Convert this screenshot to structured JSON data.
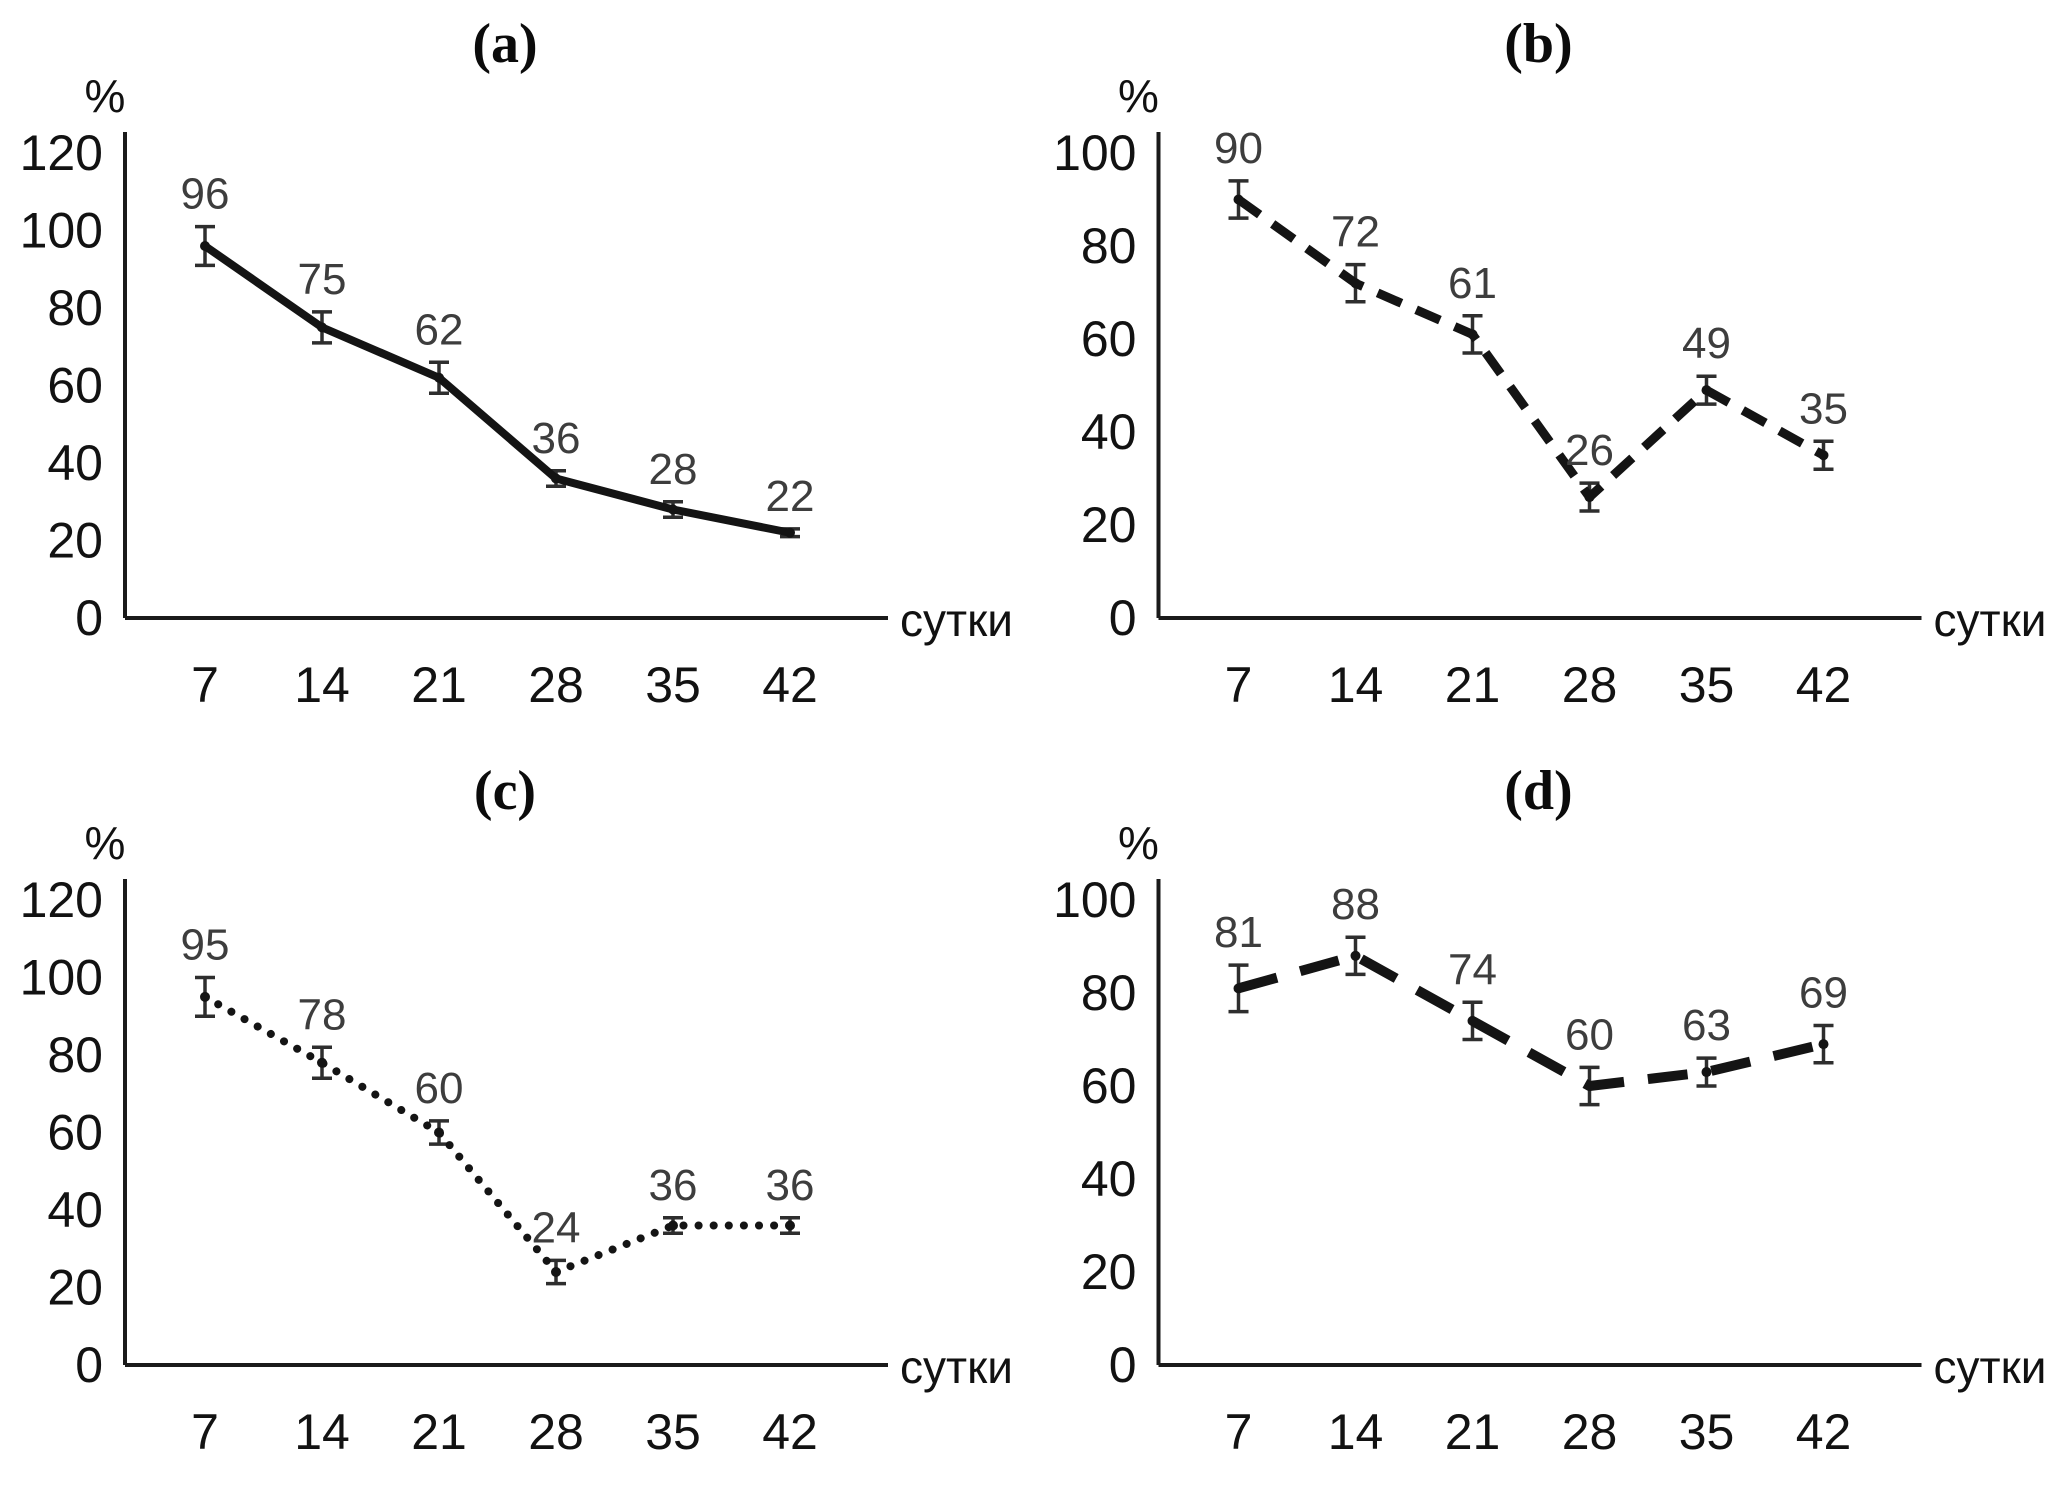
{
  "figure": {
    "background": "#ffffff",
    "ink_color": "#141414",
    "data_label_color": "#3d3d3d",
    "x_axis_unit": "сутки",
    "y_axis_unit": "%"
  },
  "chart_data": [
    {
      "type": "line",
      "title": "(a)",
      "line_style": "solid",
      "xlabel": "сутки",
      "ylabel": "%",
      "x": [
        7,
        14,
        21,
        28,
        35,
        42
      ],
      "values": [
        96,
        75,
        62,
        36,
        28,
        22
      ],
      "errors": [
        5,
        4,
        4,
        2,
        2,
        1
      ],
      "ylim": [
        0,
        120
      ],
      "yticks": [
        0,
        20,
        40,
        60,
        80,
        100,
        120
      ],
      "grid": false,
      "legend": "none",
      "error_bars": true
    },
    {
      "type": "line",
      "title": "(b)",
      "line_style": "dashed",
      "xlabel": "сутки",
      "ylabel": "%",
      "x": [
        7,
        14,
        21,
        28,
        35,
        42
      ],
      "values": [
        90,
        72,
        61,
        26,
        49,
        35
      ],
      "errors": [
        4,
        4,
        4,
        3,
        3,
        3
      ],
      "ylim": [
        0,
        100
      ],
      "yticks": [
        0,
        20,
        40,
        60,
        80,
        100
      ],
      "grid": false,
      "legend": "none",
      "error_bars": true
    },
    {
      "type": "line",
      "title": "(c)",
      "line_style": "dotted",
      "xlabel": "сутки",
      "ylabel": "%",
      "x": [
        7,
        14,
        21,
        28,
        35,
        42
      ],
      "values": [
        95,
        78,
        60,
        24,
        36,
        36
      ],
      "errors": [
        5,
        4,
        3,
        3,
        2,
        2
      ],
      "ylim": [
        0,
        120
      ],
      "yticks": [
        0,
        20,
        40,
        60,
        80,
        100,
        120
      ],
      "grid": false,
      "legend": "none",
      "error_bars": true
    },
    {
      "type": "line",
      "title": "(d)",
      "line_style": "long-dash",
      "xlabel": "сутки",
      "ylabel": "%",
      "x": [
        7,
        14,
        21,
        28,
        35,
        42
      ],
      "values": [
        81,
        88,
        74,
        60,
        63,
        69
      ],
      "errors": [
        5,
        4,
        4,
        4,
        3,
        4
      ],
      "ylim": [
        0,
        100
      ],
      "yticks": [
        0,
        20,
        40,
        60,
        80,
        100
      ],
      "grid": false,
      "legend": "none",
      "error_bars": true
    }
  ]
}
